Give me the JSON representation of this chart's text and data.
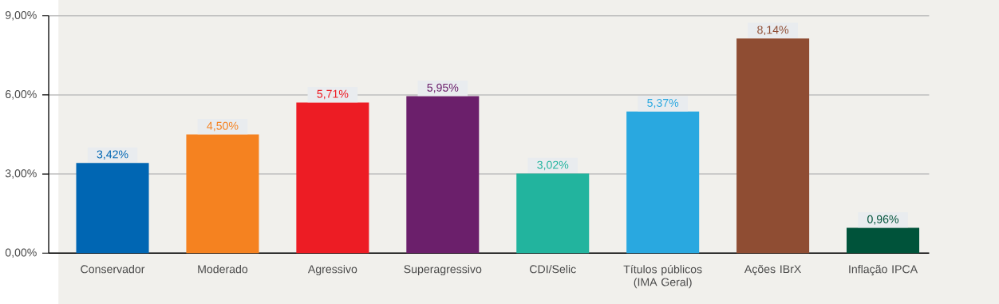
{
  "chart_data": {
    "type": "bar",
    "categories": [
      "Conservador",
      "Moderado",
      "Agressivo",
      "Superagressivo",
      "CDI/Selic",
      "Títulos públicos (IMA Geral)",
      "Ações IBrX",
      "Inflação IPCA"
    ],
    "values": [
      3.42,
      4.5,
      5.71,
      5.95,
      3.02,
      5.37,
      8.14,
      0.96
    ],
    "colors": [
      "#0066b3",
      "#f58220",
      "#ed1c24",
      "#6b1f6b",
      "#22b49e",
      "#29a8e0",
      "#8f4d33",
      "#00533a"
    ],
    "value_labels": [
      "3,42%",
      "4,50%",
      "5,71%",
      "5,95%",
      "3,02%",
      "5,37%",
      "8,14%",
      "0,96%"
    ],
    "ylim": [
      0,
      9
    ],
    "yticks": [
      {
        "value": 0,
        "label": "0,00%"
      },
      {
        "value": 3,
        "label": "3,00%"
      },
      {
        "value": 6,
        "label": "6,00%"
      },
      {
        "value": 9,
        "label": "9,00%"
      }
    ],
    "grid": "y"
  }
}
